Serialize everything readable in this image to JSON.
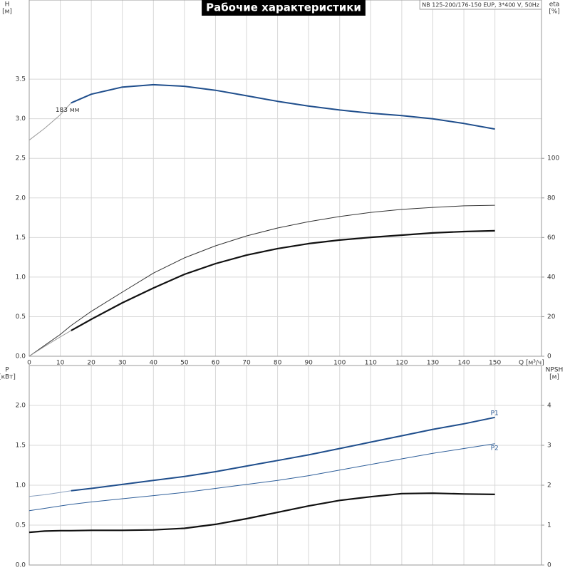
{
  "chart_data": [
    {
      "type": "line",
      "title": "Рабочие характеристики",
      "subtitle": "NB 125-200/176-150 EUP, 3*400 V, 50Hz",
      "ylabel": "H",
      "ylabel_unit": "[м]",
      "y2label": "eta",
      "y2label_unit": "[%]",
      "xlabel": "Q [м³/ч]",
      "show_xtick_labels": true,
      "x": [
        0,
        5,
        10,
        13.5,
        20,
        30,
        40,
        50,
        60,
        70,
        80,
        90,
        100,
        110,
        120,
        130,
        140,
        150
      ],
      "xlim": [
        0,
        165
      ],
      "xticks": [
        0,
        10,
        20,
        30,
        40,
        50,
        60,
        70,
        80,
        90,
        100,
        110,
        120,
        130,
        140,
        150
      ],
      "ylim": [
        0,
        4.5
      ],
      "yticks": [
        {
          "value": 0,
          "label": "0.0"
        },
        0.5,
        {
          "value": 1,
          "label": "1.0"
        },
        1.5,
        {
          "value": 2,
          "label": "2.0"
        },
        2.5,
        {
          "value": 3,
          "label": "3.0"
        },
        3.5
      ],
      "y2lim": [
        0,
        180
      ],
      "y2ticks": [
        0,
        20,
        40,
        60,
        80,
        100
      ],
      "grid": true,
      "series": [
        {
          "color": "#9a9a9a",
          "width": 1,
          "values": [
            2.73,
            2.88,
            3.05,
            3.2,
            null,
            null,
            null,
            null,
            null,
            null,
            null,
            null,
            null,
            null,
            null,
            null,
            null,
            null
          ]
        },
        {
          "name": "183 мм",
          "label_pos": "start",
          "color": "#1f4e8c",
          "width": 2,
          "values": [
            null,
            null,
            null,
            3.2,
            3.31,
            3.4,
            3.43,
            3.41,
            3.36,
            3.29,
            3.22,
            3.16,
            3.11,
            3.07,
            3.04,
            3.0,
            2.94,
            2.87
          ]
        },
        {
          "color": "#333333",
          "width": 1,
          "axis": "y2",
          "values": [
            0,
            5.5,
            11,
            15.5,
            22.7,
            32.4,
            42,
            49.7,
            55.8,
            60.8,
            64.8,
            68,
            70.6,
            72.7,
            74.2,
            75.2,
            76,
            76.3
          ]
        },
        {
          "color": "#9a9a9a",
          "width": 1,
          "axis": "y2",
          "values": [
            0,
            5,
            9.8,
            13,
            null,
            null,
            null,
            null,
            null,
            null,
            null,
            null,
            null,
            null,
            null,
            null,
            null,
            null
          ]
        },
        {
          "color": "#111111",
          "width": 2.2,
          "axis": "y2",
          "values": [
            null,
            null,
            null,
            13,
            18.7,
            27,
            34.5,
            41.4,
            46.8,
            51.1,
            54.4,
            56.9,
            58.7,
            60.1,
            61.2,
            62.3,
            63,
            63.4
          ]
        }
      ]
    },
    {
      "type": "line",
      "ylabel": "P",
      "ylabel_unit": "[кВт]",
      "y2label": "NPSH",
      "y2label_unit": "[м]",
      "show_xtick_labels": false,
      "x": [
        0,
        5,
        10,
        13.5,
        20,
        30,
        40,
        50,
        60,
        70,
        80,
        90,
        100,
        110,
        120,
        130,
        140,
        150
      ],
      "xlim": [
        0,
        165
      ],
      "xticks": [
        0,
        10,
        20,
        30,
        40,
        50,
        60,
        70,
        80,
        90,
        100,
        110,
        120,
        130,
        140,
        150
      ],
      "ylim": [
        0,
        2.5
      ],
      "yticks": [
        {
          "value": 0,
          "label": "0.0"
        },
        0.5,
        {
          "value": 1,
          "label": "1.0"
        },
        1.5,
        {
          "value": 2,
          "label": "2.0"
        }
      ],
      "y2lim": [
        0,
        5
      ],
      "y2ticks": [
        0,
        1,
        2,
        3,
        4
      ],
      "grid": true,
      "series": [
        {
          "color": "#8aa0bf",
          "width": 1,
          "values": [
            0.86,
            0.88,
            0.91,
            0.93,
            null,
            null,
            null,
            null,
            null,
            null,
            null,
            null,
            null,
            null,
            null,
            null,
            null,
            null
          ]
        },
        {
          "name": "P1",
          "label_pos": "end-above",
          "color": "#1f4e8c",
          "width": 2,
          "values": [
            null,
            null,
            null,
            0.93,
            0.96,
            1.01,
            1.06,
            1.11,
            1.17,
            1.24,
            1.31,
            1.38,
            1.46,
            1.54,
            1.62,
            1.7,
            1.77,
            1.85
          ]
        },
        {
          "name": "P2",
          "label_pos": "end-below",
          "color": "#2f5f9a",
          "width": 1,
          "values": [
            0.68,
            0.71,
            0.74,
            0.76,
            0.79,
            0.83,
            0.87,
            0.91,
            0.96,
            1.01,
            1.06,
            1.12,
            1.19,
            1.26,
            1.33,
            1.4,
            1.46,
            1.52
          ]
        },
        {
          "color": "#111111",
          "width": 2.2,
          "axis": "y2",
          "values": [
            0.82,
            0.85,
            0.86,
            0.86,
            0.87,
            0.87,
            0.88,
            0.92,
            1.02,
            1.16,
            1.32,
            1.48,
            1.62,
            1.71,
            1.79,
            1.8,
            1.78,
            1.77
          ]
        }
      ]
    }
  ]
}
